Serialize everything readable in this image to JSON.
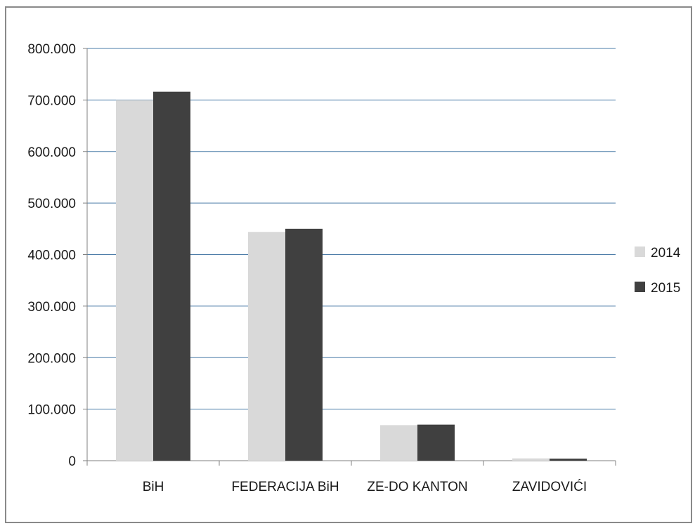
{
  "chart_data": {
    "type": "bar",
    "title": "",
    "xlabel": "",
    "ylabel": "",
    "categories": [
      "BiH",
      "FEDERACIJA BiH",
      "ZE-DO KANTON",
      "ZAVIDOVIĆI"
    ],
    "series": [
      {
        "name": "2014",
        "values": [
          700000,
          444000,
          69000,
          4500
        ],
        "color": "#d9d9d9"
      },
      {
        "name": "2015",
        "values": [
          716000,
          450000,
          70000,
          4000
        ],
        "color": "#404040"
      }
    ],
    "ylim": [
      0,
      800000
    ],
    "yticks": [
      0,
      100000,
      200000,
      300000,
      400000,
      500000,
      600000,
      700000,
      800000
    ],
    "ytick_labels": [
      "0",
      "100.000",
      "200.000",
      "300.000",
      "400.000",
      "500.000",
      "600.000",
      "700.000",
      "800.000"
    ],
    "grid": true,
    "gridline_color": "#4a7ba7",
    "legend_position": "right"
  }
}
